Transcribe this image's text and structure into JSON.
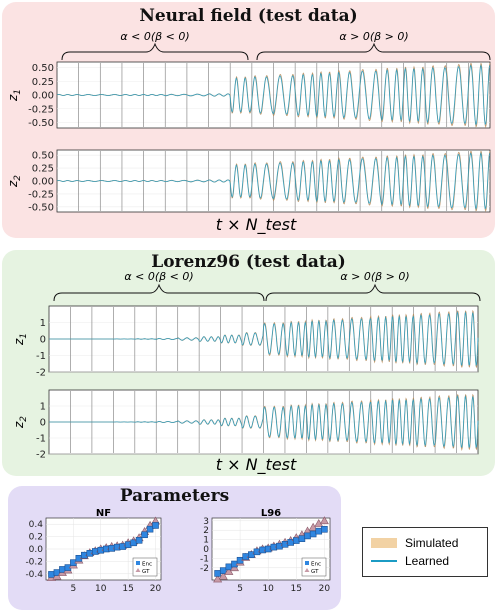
{
  "panels": {
    "neural_field": {
      "title": "Neural field (test data)"
    },
    "lorenz96": {
      "title": "Lorenz96 (test data)"
    },
    "parameters": {
      "title": "Parameters"
    }
  },
  "brace_labels": {
    "left": "α < 0(β < 0)",
    "right": "α > 0(β > 0)"
  },
  "time_axis_label": "t × N_test",
  "colors": {
    "simulated": "#f2d2a4",
    "simulated_line": "#b88b5a",
    "learned": "#1b9bc4",
    "enc": "#2f86e0",
    "gt": "#c79aa6",
    "separator": "#8c8c8c"
  },
  "legend": {
    "simulated": "Simulated",
    "learned": "Learned"
  },
  "chart_data": [
    {
      "type": "line",
      "id": "nf_z1",
      "ylabel": "z_1",
      "ylim": [
        -0.6,
        0.6
      ],
      "yticks": [
        "0.50",
        "0.25",
        "0.00",
        "-0.25",
        "-0.50"
      ],
      "ytick_values": [
        0.5,
        0.25,
        0,
        -0.25,
        -0.5
      ],
      "segments": 20,
      "amplitude_start": 0.01,
      "amplitude_end": 0.6,
      "regime_switch_segment": 8
    },
    {
      "type": "line",
      "id": "nf_z2",
      "ylabel": "z_2",
      "ylim": [
        -0.6,
        0.6
      ],
      "yticks": [
        "0.50",
        "0.25",
        "0.00",
        "-0.25",
        "-0.50"
      ],
      "ytick_values": [
        0.5,
        0.25,
        0,
        -0.25,
        -0.5
      ],
      "segments": 20,
      "amplitude_start": 0.01,
      "amplitude_end": 0.6,
      "regime_switch_segment": 8
    },
    {
      "type": "line",
      "id": "l96_z1",
      "ylabel": "z_1",
      "ylim": [
        -2,
        2
      ],
      "yticks": [
        "1",
        "0",
        "-1",
        "-2"
      ],
      "ytick_values": [
        1,
        0,
        -1,
        -2
      ],
      "segments": 20,
      "amplitude_start": 0.0,
      "amplitude_end": 1.8,
      "regime_switch_segment": 10
    },
    {
      "type": "line",
      "id": "l96_z2",
      "ylabel": "z_2",
      "ylim": [
        -2,
        2
      ],
      "yticks": [
        "1",
        "0",
        "-1",
        "-2"
      ],
      "ytick_values": [
        1,
        0,
        -1,
        -2
      ],
      "segments": 20,
      "amplitude_start": 0.0,
      "amplitude_end": 1.8,
      "regime_switch_segment": 10
    },
    {
      "type": "scatter",
      "id": "params_nf",
      "title": "NF",
      "xlim": [
        0,
        21
      ],
      "ylim": [
        -0.5,
        0.5
      ],
      "xticks": [
        "5",
        "10",
        "15",
        "20"
      ],
      "xtick_values": [
        5,
        10,
        15,
        20
      ],
      "yticks": [
        "0.4",
        "0.2",
        "0.0",
        "-0.2",
        "-0.4"
      ],
      "ytick_values": [
        0.4,
        0.2,
        0,
        -0.2,
        -0.4
      ],
      "x": [
        1,
        2,
        3,
        4,
        5,
        6,
        7,
        8,
        9,
        10,
        11,
        12,
        13,
        14,
        15,
        16,
        17,
        18,
        19,
        20
      ],
      "series": [
        {
          "name": "Enc",
          "values": [
            -0.41,
            -0.38,
            -0.33,
            -0.3,
            -0.22,
            -0.15,
            -0.1,
            -0.07,
            -0.04,
            -0.02,
            0.0,
            0.01,
            0.03,
            0.04,
            0.07,
            0.1,
            0.14,
            0.23,
            0.32,
            0.38
          ]
        },
        {
          "name": "GT",
          "values": [
            -0.46,
            -0.44,
            -0.38,
            -0.34,
            -0.26,
            -0.18,
            -0.11,
            -0.06,
            -0.03,
            0.0,
            0.02,
            0.04,
            0.05,
            0.06,
            0.1,
            0.13,
            0.18,
            0.28,
            0.38,
            0.45
          ]
        }
      ],
      "legend_position": "bottom-right"
    },
    {
      "type": "scatter",
      "id": "params_l96",
      "title": "L96",
      "xlim": [
        0,
        21
      ],
      "ylim": [
        -3.3,
        3.3
      ],
      "xticks": [
        "5",
        "10",
        "15",
        "20"
      ],
      "xtick_values": [
        5,
        10,
        15,
        20
      ],
      "yticks": [
        "3",
        "2",
        "1",
        "0",
        "-1",
        "-2"
      ],
      "ytick_values": [
        3,
        2,
        1,
        0,
        -1,
        -2
      ],
      "x": [
        1,
        2,
        3,
        4,
        5,
        6,
        7,
        8,
        9,
        10,
        11,
        12,
        13,
        14,
        15,
        16,
        17,
        18,
        19,
        20
      ],
      "series": [
        {
          "name": "Enc",
          "values": [
            -2.6,
            -2.3,
            -1.9,
            -1.6,
            -1.2,
            -0.8,
            -0.6,
            -0.3,
            -0.1,
            0.0,
            0.2,
            0.3,
            0.5,
            0.7,
            0.9,
            1.1,
            1.4,
            1.6,
            1.9,
            2.1
          ]
        },
        {
          "name": "GT",
          "values": [
            -3.2,
            -2.9,
            -2.4,
            -2.0,
            -1.4,
            -0.9,
            -0.6,
            -0.2,
            0.0,
            0.1,
            0.3,
            0.5,
            0.7,
            0.9,
            1.2,
            1.5,
            1.9,
            2.3,
            2.7,
            3.0
          ]
        }
      ],
      "legend_position": "bottom-right"
    }
  ]
}
